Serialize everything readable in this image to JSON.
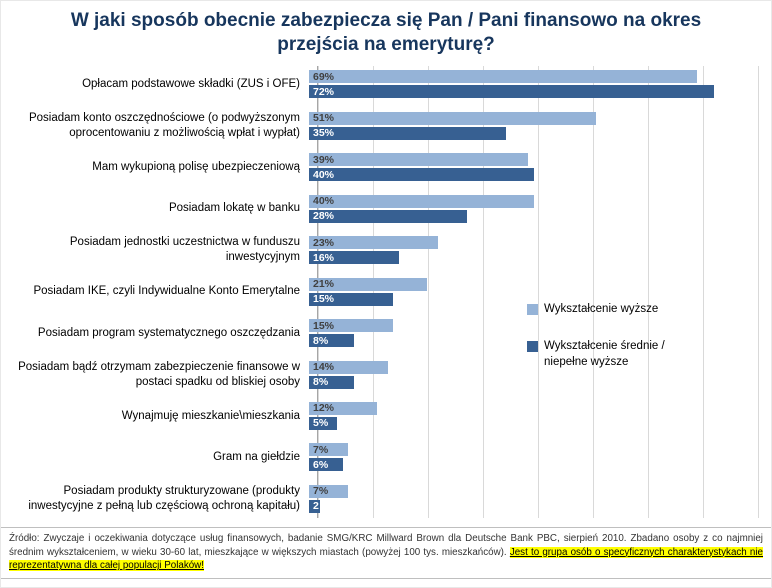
{
  "title": "W jaki sposób obecnie zabezpiecza się Pan / Pani finansowo na okres przejścia na emeryturę?",
  "chart_data": {
    "type": "bar",
    "orientation": "horizontal",
    "title": "W jaki sposób obecnie zabezpiecza się Pan / Pani finansowo na okres przejścia na emeryturę?",
    "xlabel": "",
    "ylabel": "",
    "xlim": [
      0,
      80
    ],
    "gridline_step": 10,
    "grid": true,
    "legend_position": "middle-right",
    "categories": [
      "Opłacam podstawowe składki (ZUS i OFE)",
      "Posiadam konto oszczędnościowe (o podwyższonym oprocentowaniu z możliwością wpłat i wypłat)",
      "Mam wykupioną polisę ubezpieczeniową",
      "Posiadam lokatę w banku",
      "Posiadam jednostki uczestnictwa w funduszu inwestycyjnym",
      "Posiadam IKE, czyli Indywidualne Konto Emerytalne",
      "Posiadam program systematycznego oszczędzania",
      "Posiadam bądź otrzymam zabezpieczenie finansowe w postaci spadku od bliskiej osoby",
      "Wynajmuję mieszkanie\\mieszkania",
      "Gram na giełdzie",
      "Posiadam produkty strukturyzowane (produkty inwestycyjne z pełną lub częściową ochroną kapitału)"
    ],
    "series": [
      {
        "name": "Wykształcenie wyższe",
        "key": "wyzsze",
        "color": "#95B3D7",
        "label_color": "#404040",
        "values": [
          69,
          51,
          39,
          40,
          23,
          21,
          15,
          14,
          12,
          7,
          7
        ],
        "labels": [
          "69%",
          "51%",
          "39%",
          "40%",
          "23%",
          "21%",
          "15%",
          "14%",
          "12%",
          "7%",
          "7%"
        ]
      },
      {
        "name": "Wykształcenie średnie / niepełne wyższe",
        "key": "srednie",
        "color": "#376092",
        "label_color": "#FFFFFF",
        "values": [
          72,
          35,
          40,
          28,
          16,
          15,
          8,
          8,
          5,
          6,
          2
        ],
        "labels": [
          "72%",
          "35%",
          "40%",
          "28%",
          "16%",
          "15%",
          "8%",
          "8%",
          "5%",
          "6%",
          "2"
        ]
      }
    ]
  },
  "footer": {
    "source_plain": "Źródło: Zwyczaje i oczekiwania dotyczące usług finansowych, badanie SMG/KRC Millward Brown dla Deutsche Bank PBC, sierpień 2010. Zbadano osoby z co najmniej średnim wykształceniem, w wieku 30-60 lat, mieszkające w większych miastach (powyżej 100 tys. mieszkańców). ",
    "source_highlight": "Jest to grupa osób o specyficznych charakterystykach nie reprezentatywna dla całej populacji Polaków!",
    "highlight_color": "#FFFF00"
  },
  "colors": {
    "title": "#17365D",
    "grid": "#D9D9D9",
    "axis": "#A6A6A6",
    "series_light": "#95B3D7",
    "series_dark": "#376092"
  }
}
